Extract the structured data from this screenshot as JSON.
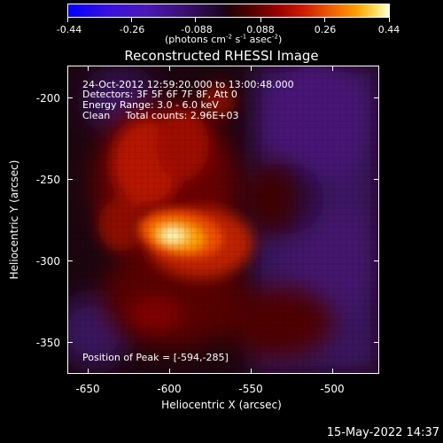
{
  "colorbar": {
    "tick_labels": [
      "-0.44",
      "-0.26",
      "-0.088",
      "0.088",
      "0.26",
      "0.44"
    ],
    "units_label": "(photons cm^-2 s^-1 asec^-2)",
    "units_base": "(photons cm",
    "units_exp1": "-2",
    "units_mid1": " s",
    "units_exp2": "-1",
    "units_mid2": " asec",
    "units_exp3": "-2",
    "units_end": ")",
    "range": [
      -0.44,
      0.44
    ]
  },
  "image": {
    "title": "Reconstructed RHESSI Image",
    "time_range": "24-Oct-2012 12:59:20.000 to 13:00:48.000",
    "detectors": "Detectors: 3F 5F 6F 7F 8F, Att 0",
    "energy_range": "Energy Range: 3.0 - 6.0 keV",
    "method_counts": "Clean     Total counts: 2.96E+03",
    "peak_position": "Position of Peak = [-594,-285]",
    "x_axis_title": "Heliocentric X (arcsec)",
    "y_axis_title": "Heliocentric Y (arcsec)",
    "x_tick_labels": [
      "-650",
      "-600",
      "-550",
      "-500"
    ],
    "y_tick_labels": [
      "-200",
      "-250",
      "-300",
      "-350"
    ],
    "x_range": [
      -663,
      -472
    ],
    "y_range": [
      -370,
      -183
    ],
    "x_ticks": [
      -650,
      -600,
      -550,
      -500
    ],
    "y_ticks": [
      -200,
      -250,
      -300,
      -350
    ],
    "peak": [
      -594,
      -285
    ]
  },
  "footer": {
    "timestamp": "15-May-2022 14:37"
  }
}
